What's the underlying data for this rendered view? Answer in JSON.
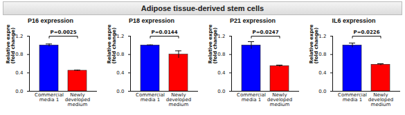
{
  "title": "Adipose tissue-derived stem cells",
  "chart_data": [
    {
      "type": "bar",
      "title": "P16 expression",
      "categories": [
        "Commercial media 1",
        "Newly developed medium"
      ],
      "values": [
        1.0,
        0.45
      ],
      "errors": [
        0.03,
        0.01
      ],
      "colors": [
        "#0000ff",
        "#ff0000"
      ],
      "ylabel": "Relative expression (fold change)",
      "ylim": [
        0,
        1.2
      ],
      "yticks": [
        {
          "value": 0,
          "label": "0.0"
        },
        0.4,
        0.8,
        1.2
      ],
      "annotation": "P=0.0025"
    },
    {
      "type": "bar",
      "title": "P18 expression",
      "categories": [
        "Commercial media 1",
        "Newly developed medium"
      ],
      "values": [
        1.0,
        0.8
      ],
      "errors": [
        0.01,
        0.08
      ],
      "colors": [
        "#0000ff",
        "#ff0000"
      ],
      "ylabel": "Relative expression (fold change)",
      "ylim": [
        0,
        1.2
      ],
      "yticks": [
        {
          "value": 0,
          "label": "0.0"
        },
        0.4,
        0.8,
        1.2
      ],
      "annotation": "P=0.0144"
    },
    {
      "type": "bar",
      "title": "P21 expression",
      "categories": [
        "Commercial media 1",
        "Newly developed medium"
      ],
      "values": [
        1.0,
        0.55
      ],
      "errors": [
        0.08,
        0.02
      ],
      "colors": [
        "#0000ff",
        "#ff0000"
      ],
      "ylabel": "Relative expression (fold change)",
      "ylim": [
        0,
        1.2
      ],
      "yticks": [
        {
          "value": 0,
          "label": "0.0"
        },
        0.4,
        0.8,
        1.2
      ],
      "annotation": "P=0.0247"
    },
    {
      "type": "bar",
      "title": "IL6 expression",
      "categories": [
        "Commercial media 1",
        "Newly developed medium"
      ],
      "values": [
        1.0,
        0.58
      ],
      "errors": [
        0.05,
        0.02
      ],
      "colors": [
        "#0000ff",
        "#ff0000"
      ],
      "ylabel": "Relative expression (fold change)",
      "ylim": [
        0,
        1.2
      ],
      "yticks": [
        {
          "value": 0,
          "label": "0.0"
        },
        0.4,
        0.8,
        1.2
      ],
      "annotation": "P=0.0226"
    }
  ]
}
